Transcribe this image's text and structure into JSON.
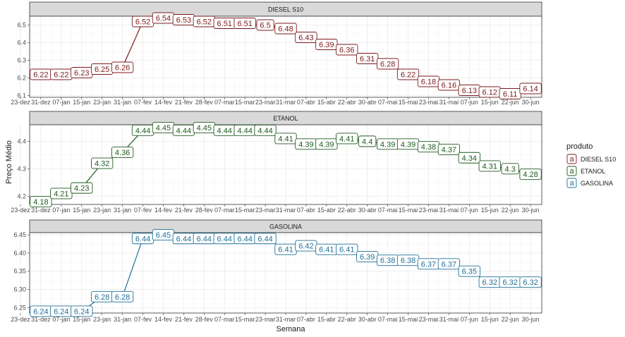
{
  "chart_data": {
    "type": "line",
    "facet_by": "produto",
    "xlabel": "Semana",
    "ylabel": "Preço Médio",
    "x_categories": [
      "23-dez",
      "31-dez",
      "07-jan",
      "15-jan",
      "23-jan",
      "31-jan",
      "07-fev",
      "14-fev",
      "21-fev",
      "28-fev",
      "07-mar",
      "15-mar",
      "23-mar",
      "31-mar",
      "07-abr",
      "15-abr",
      "22-abr",
      "30-abr",
      "07-mai",
      "15-mai",
      "23-mai",
      "31-mai",
      "07-jun",
      "15-jun",
      "22-jun",
      "30-jun"
    ],
    "label_x_categories": [
      "31-dez",
      "07-jan",
      "15-jan",
      "23-jan",
      "31-jan",
      "07-fev",
      "14-fev",
      "21-fev",
      "28-fev",
      "07-mar",
      "15-mar",
      "23-mar",
      "31-mar",
      "07-abr",
      "15-abr",
      "22-abr",
      "30-abr",
      "07-mai",
      "15-mai",
      "23-mai",
      "31-mai",
      "07-jun",
      "15-jun",
      "22-jun",
      "30-jun"
    ],
    "grid": true,
    "legend": {
      "title": "produto",
      "position": "right",
      "key_glyph": "a",
      "entries": [
        "DIESEL S10",
        "ETANOL",
        "GASOLINA"
      ]
    },
    "panels": [
      {
        "name": "DIESEL S10",
        "color": "#7b1a1a",
        "ylim": [
          6.09,
          6.55
        ],
        "yticks": [
          6.1,
          6.2,
          6.3,
          6.4,
          6.5
        ],
        "ytick_labels": [
          "6.1",
          "6.2",
          "6.3",
          "6.4",
          "6.5"
        ],
        "values": [
          6.22,
          6.22,
          6.23,
          6.25,
          6.26,
          6.52,
          6.54,
          6.53,
          6.52,
          6.51,
          6.51,
          6.5,
          6.48,
          6.43,
          6.39,
          6.36,
          6.31,
          6.28,
          6.22,
          6.18,
          6.16,
          6.13,
          6.12,
          6.11,
          6.14
        ],
        "labels": [
          "6.22",
          "6.22",
          "6.23",
          "6.25",
          "6.26",
          "6.52",
          "6.54",
          "6.53",
          "6.52",
          "6.51",
          "6.51",
          "6.5",
          "6.48",
          "6.43",
          "6.39",
          "6.36",
          "6.31",
          "6.28",
          "6.22",
          "6.18",
          "6.16",
          "6.13",
          "6.12",
          "6.11",
          "6.14"
        ]
      },
      {
        "name": "ETANOL",
        "color": "#1e5a1e",
        "ylim": [
          4.17,
          4.46
        ],
        "yticks": [
          4.2,
          4.3,
          4.4
        ],
        "ytick_labels": [
          "4.2",
          "4.3",
          "4.4"
        ],
        "values": [
          4.18,
          4.21,
          4.23,
          4.32,
          4.36,
          4.44,
          4.45,
          4.44,
          4.45,
          4.44,
          4.44,
          4.44,
          4.41,
          4.39,
          4.39,
          4.41,
          4.4,
          4.39,
          4.39,
          4.38,
          4.37,
          4.34,
          4.31,
          4.3,
          4.28
        ],
        "labels": [
          "4.18",
          "4.21",
          "4.23",
          "4.32",
          "4.36",
          "4.44",
          "4.45",
          "4.44",
          "4.45",
          "4.44",
          "4.44",
          "4.44",
          "4.41",
          "4.39",
          "4.39",
          "4.41",
          "4.4",
          "4.39",
          "4.39",
          "4.38",
          "4.37",
          "4.34",
          "4.31",
          "4.3",
          "4.28"
        ]
      },
      {
        "name": "GASOLINA",
        "color": "#1f6f98",
        "ylim": [
          6.235,
          6.456
        ],
        "yticks": [
          6.25,
          6.3,
          6.35,
          6.4,
          6.45
        ],
        "ytick_labels": [
          "6.25",
          "6.30",
          "6.35",
          "6.40",
          "6.45"
        ],
        "values": [
          6.24,
          6.24,
          6.24,
          6.28,
          6.28,
          6.44,
          6.45,
          6.44,
          6.44,
          6.44,
          6.44,
          6.44,
          6.41,
          6.42,
          6.41,
          6.41,
          6.39,
          6.38,
          6.38,
          6.37,
          6.37,
          6.35,
          6.32,
          6.32,
          6.32
        ],
        "labels": [
          "6.24",
          "6.24",
          "6.24",
          "6.28",
          "6.28",
          "6.44",
          "6.45",
          "6.44",
          "6.44",
          "6.44",
          "6.44",
          "6.44",
          "6.41",
          "6.42",
          "6.41",
          "6.41",
          "6.39",
          "6.38",
          "6.38",
          "6.37",
          "6.37",
          "6.35",
          "6.32",
          "6.32",
          "6.32"
        ]
      }
    ]
  }
}
